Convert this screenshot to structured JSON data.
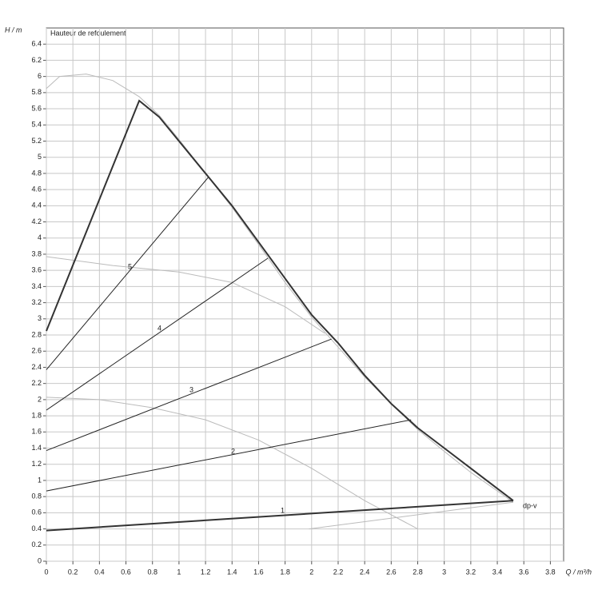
{
  "chart_data": {
    "type": "line",
    "title": "Hauteur de refoulement",
    "y_label": "H / m",
    "x_label": "Q / m³/h",
    "xlim": [
      0,
      3.9
    ],
    "ylim": [
      0,
      6.6
    ],
    "xticks": [
      0,
      0.2,
      0.4,
      0.6,
      0.8,
      1,
      1.2,
      1.4,
      1.6,
      1.8,
      2,
      2.2,
      2.4,
      2.6,
      2.8,
      3,
      3.2,
      3.4,
      3.6,
      3.8
    ],
    "yticks": [
      0,
      0.2,
      0.4,
      0.6,
      0.8,
      1,
      1.2,
      1.4,
      1.6,
      1.8,
      2,
      2.2,
      2.4,
      2.6,
      2.8,
      3,
      3.2,
      3.4,
      3.6,
      3.8,
      4,
      4.2,
      4.4,
      4.6,
      4.8,
      5,
      5.2,
      5.4,
      5.6,
      5.8,
      6,
      6.2,
      6.4
    ],
    "grid": true,
    "annotations": [
      "1",
      "2",
      "3",
      "4",
      "5",
      "dp-v"
    ],
    "series": [
      {
        "color": "#bbbbbb",
        "line_width": 1,
        "x": [
          0,
          0.1,
          0.3,
          0.5,
          0.7,
          0.85,
          1.0,
          1.2,
          1.4,
          1.6,
          1.8,
          2.0,
          2.2,
          2.4,
          2.6,
          2.8,
          3.0,
          3.2,
          3.4,
          3.52
        ],
        "values": [
          5.85,
          6.0,
          6.03,
          5.95,
          5.75,
          5.52,
          5.22,
          4.8,
          4.38,
          3.92,
          3.45,
          3.02,
          2.65,
          2.28,
          1.95,
          1.63,
          1.36,
          1.1,
          0.87,
          0.73
        ]
      },
      {
        "color": "#bbbbbb",
        "line_width": 1,
        "x": [
          0,
          0.5,
          1.0,
          1.4,
          1.8,
          2.1
        ],
        "values": [
          3.77,
          3.66,
          3.58,
          3.45,
          3.15,
          2.82
        ]
      },
      {
        "color": "#bbbbbb",
        "line_width": 1,
        "x": [
          0,
          0.4,
          0.8,
          1.2,
          1.6,
          2.0,
          2.4,
          2.8
        ],
        "values": [
          2.03,
          2.0,
          1.9,
          1.75,
          1.5,
          1.15,
          0.75,
          0.4
        ]
      },
      {
        "color": "#bbbbbb",
        "line_width": 1,
        "x": [
          1.98,
          3.52
        ],
        "values": [
          0.4,
          0.73
        ]
      },
      {
        "color": "#222222",
        "line_width": 1,
        "x": [
          0,
          1.22
        ],
        "values": [
          2.37,
          4.75
        ]
      },
      {
        "color": "#222222",
        "line_width": 1,
        "x": [
          0,
          1.67
        ],
        "values": [
          1.87,
          3.75
        ]
      },
      {
        "color": "#222222",
        "line_width": 1,
        "x": [
          0,
          2.15
        ],
        "values": [
          1.37,
          2.75
        ]
      },
      {
        "color": "#222222",
        "line_width": 1,
        "x": [
          0,
          2.75
        ],
        "values": [
          0.87,
          1.75
        ]
      },
      {
        "color": "#333333",
        "line_width": 2,
        "x": [
          0,
          3.52
        ],
        "values": [
          0.38,
          0.75
        ]
      },
      {
        "color": "#333333",
        "line_width": 2,
        "x": [
          0,
          0.7,
          0.85,
          1.0,
          1.2,
          1.4,
          1.6,
          1.8,
          2.0,
          2.2,
          2.4,
          2.6,
          2.8,
          3.0,
          3.2,
          3.4,
          3.52
        ],
        "values": [
          2.85,
          5.7,
          5.5,
          5.2,
          4.8,
          4.4,
          3.95,
          3.5,
          3.05,
          2.7,
          2.3,
          1.95,
          1.65,
          1.4,
          1.15,
          0.9,
          0.75
        ]
      }
    ]
  }
}
